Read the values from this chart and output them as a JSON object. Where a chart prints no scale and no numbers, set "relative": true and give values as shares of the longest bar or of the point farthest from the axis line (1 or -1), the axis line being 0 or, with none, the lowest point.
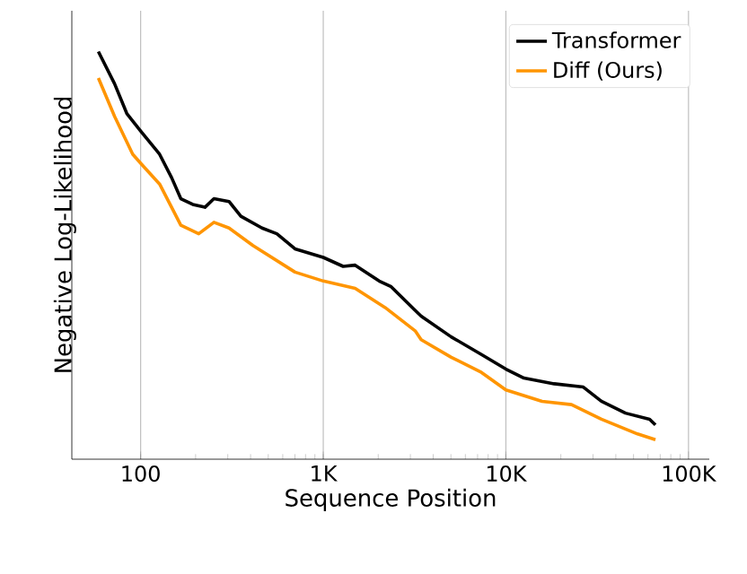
{
  "chart_data": {
    "type": "line",
    "xlabel": "Sequence Position",
    "ylabel": "Negative Log-Likelihood",
    "relative": true,
    "log": "x",
    "grid": "x",
    "legend": "top right",
    "marker": "none",
    "line_style": "solid",
    "xlim": [
      42,
      130000
    ],
    "xticks": [
      100,
      {
        "value": 1000,
        "label": "1K"
      },
      {
        "value": 10000,
        "label": "10K"
      },
      {
        "value": 100000,
        "label": "100K"
      }
    ],
    "series": [
      {
        "name": "Transformer",
        "color": "#000000",
        "x": [
          58.7,
          72,
          84,
          100,
          127,
          148,
          166,
          193,
          225,
          252,
          305,
          354,
          462,
          557,
          700,
          1000,
          1285,
          1495,
          2023,
          2355,
          3185,
          3436,
          5020,
          7345,
          10000,
          12560,
          18370,
          26550,
          33340,
          45190,
          61240,
          65920
        ],
        "values": [
          1.0,
          0.921,
          0.848,
          0.805,
          0.748,
          0.69,
          0.639,
          0.625,
          0.618,
          0.639,
          0.632,
          0.596,
          0.567,
          0.553,
          0.516,
          0.495,
          0.473,
          0.476,
          0.437,
          0.423,
          0.365,
          0.351,
          0.3,
          0.257,
          0.221,
          0.199,
          0.185,
          0.177,
          0.142,
          0.113,
          0.098,
          0.084
        ]
      },
      {
        "name": "Diff (Ours)",
        "color": "#ff9500",
        "x": [
          58.7,
          72,
          90.5,
          100,
          127,
          166,
          208,
          252,
          305,
          412,
          700,
          1000,
          1495,
          2182,
          3185,
          3436,
          5020,
          7345,
          10000,
          15780,
          22870,
          33340,
          52570,
          65920
        ],
        "values": [
          0.935,
          0.841,
          0.748,
          0.726,
          0.675,
          0.574,
          0.553,
          0.581,
          0.567,
          0.524,
          0.459,
          0.437,
          0.419,
          0.372,
          0.315,
          0.293,
          0.25,
          0.213,
          0.17,
          0.142,
          0.134,
          0.098,
          0.062,
          0.048
        ]
      }
    ]
  }
}
